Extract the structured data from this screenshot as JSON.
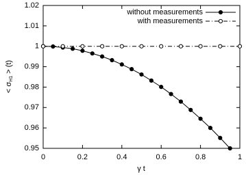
{
  "chart_data": {
    "type": "line",
    "x_label": "γ t",
    "y_label": "< σ",
    "y_label_sub": "H1",
    "y_label_end": " > (t)",
    "xlim": [
      0,
      1
    ],
    "xticks": [
      0,
      0.2,
      0.4,
      0.6,
      0.8,
      1
    ],
    "ylim": [
      0.95,
      1.02
    ],
    "yticks": [
      0.95,
      0.96,
      0.97,
      0.98,
      0.99,
      1,
      1.01,
      1.02
    ],
    "legend": "top-right",
    "series": [
      {
        "name": "without measurements",
        "color": "#000000",
        "marker": "filled",
        "dash": "solid",
        "x": [
          0,
          0.05,
          0.1,
          0.15,
          0.2,
          0.25,
          0.3,
          0.35,
          0.4,
          0.45,
          0.5,
          0.55,
          0.6,
          0.65,
          0.7,
          0.75,
          0.8,
          0.85,
          0.9,
          0.95
        ],
        "values": [
          1,
          0.9999,
          0.9994,
          0.9988,
          0.9978,
          0.9965,
          0.995,
          0.9932,
          0.9911,
          0.9888,
          0.9862,
          0.9832,
          0.9801,
          0.9766,
          0.9729,
          0.9688,
          0.9645,
          0.96,
          0.9551,
          0.95
        ]
      },
      {
        "name": "with measurements",
        "color": "#000000",
        "marker": "open",
        "dash": "dashdot",
        "x": [
          0,
          0.1,
          0.2,
          0.3,
          0.4,
          0.5,
          0.6,
          0.7,
          0.8,
          0.9,
          1
        ],
        "values": [
          1,
          1,
          1,
          1,
          1,
          1,
          1,
          1,
          1,
          1,
          1
        ]
      }
    ]
  }
}
